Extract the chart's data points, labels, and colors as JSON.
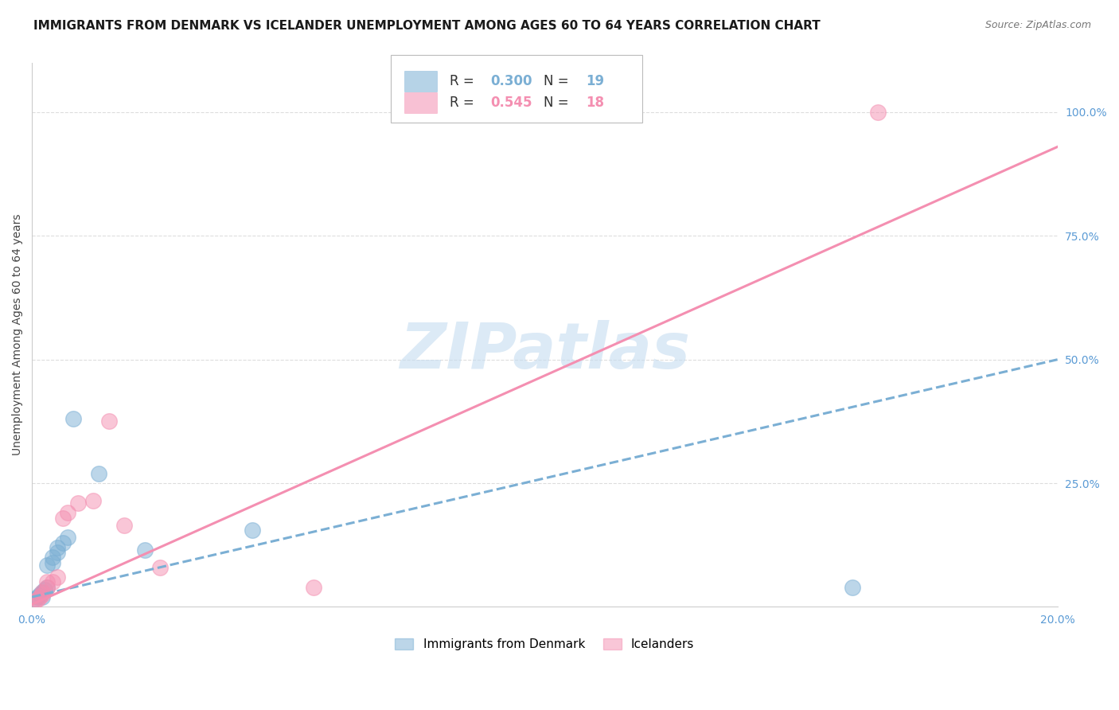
{
  "title": "IMMIGRANTS FROM DENMARK VS ICELANDER UNEMPLOYMENT AMONG AGES 60 TO 64 YEARS CORRELATION CHART",
  "source": "Source: ZipAtlas.com",
  "ylabel": "Unemployment Among Ages 60 to 64 years",
  "xlim": [
    0.0,
    0.2
  ],
  "ylim": [
    0.0,
    1.1
  ],
  "xticks": [
    0.0,
    0.05,
    0.1,
    0.15,
    0.2
  ],
  "xticklabels": [
    "0.0%",
    "",
    "",
    "",
    "20.0%"
  ],
  "yticks_right": [
    0.25,
    0.5,
    0.75,
    1.0
  ],
  "yticklabels_right": [
    "25.0%",
    "50.0%",
    "75.0%",
    "100.0%"
  ],
  "R_blue": 0.3,
  "N_blue": 19,
  "R_pink": 0.545,
  "N_pink": 18,
  "blue_color": "#7BAFD4",
  "pink_color": "#F48FB1",
  "blue_scatter": [
    [
      0.0005,
      0.015
    ],
    [
      0.001,
      0.02
    ],
    [
      0.0015,
      0.025
    ],
    [
      0.002,
      0.02
    ],
    [
      0.002,
      0.03
    ],
    [
      0.0025,
      0.035
    ],
    [
      0.003,
      0.04
    ],
    [
      0.003,
      0.085
    ],
    [
      0.004,
      0.09
    ],
    [
      0.004,
      0.1
    ],
    [
      0.005,
      0.11
    ],
    [
      0.005,
      0.12
    ],
    [
      0.006,
      0.13
    ],
    [
      0.007,
      0.14
    ],
    [
      0.008,
      0.38
    ],
    [
      0.013,
      0.27
    ],
    [
      0.022,
      0.115
    ],
    [
      0.043,
      0.155
    ],
    [
      0.16,
      0.04
    ]
  ],
  "pink_scatter": [
    [
      0.0005,
      0.01
    ],
    [
      0.001,
      0.015
    ],
    [
      0.0015,
      0.02
    ],
    [
      0.002,
      0.025
    ],
    [
      0.002,
      0.03
    ],
    [
      0.003,
      0.04
    ],
    [
      0.003,
      0.05
    ],
    [
      0.004,
      0.05
    ],
    [
      0.005,
      0.06
    ],
    [
      0.006,
      0.18
    ],
    [
      0.007,
      0.19
    ],
    [
      0.009,
      0.21
    ],
    [
      0.012,
      0.215
    ],
    [
      0.015,
      0.375
    ],
    [
      0.018,
      0.165
    ],
    [
      0.025,
      0.08
    ],
    [
      0.055,
      0.04
    ],
    [
      0.165,
      1.0
    ]
  ],
  "blue_trend": [
    0.0,
    0.2,
    0.02,
    0.5
  ],
  "pink_trend": [
    0.0,
    0.2,
    0.005,
    0.93
  ],
  "background_color": "#FFFFFF",
  "watermark_text": "ZIPatlas",
  "watermark_color": "#C5DCF0",
  "grid_color": "#DDDDDD",
  "title_fontsize": 11,
  "axis_label_fontsize": 10,
  "tick_fontsize": 10,
  "tick_color": "#5B9BD5"
}
